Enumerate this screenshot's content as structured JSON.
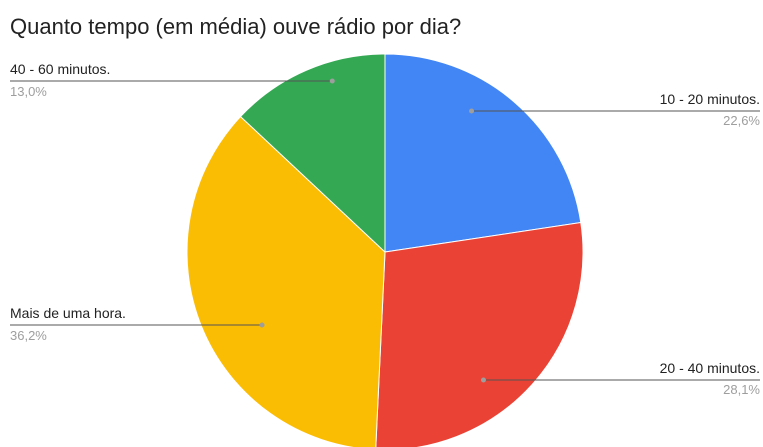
{
  "chart_data": {
    "type": "pie",
    "title": "Quanto tempo (em média) ouve rádio por dia?",
    "slices": [
      {
        "label": "10 - 20 minutos.",
        "value": 22.6,
        "pct_label": "22,6%",
        "color": "#4285f4"
      },
      {
        "label": "20 - 40 minutos.",
        "value": 28.1,
        "pct_label": "28,1%",
        "color": "#ea4335"
      },
      {
        "label": "Mais de uma hora.",
        "value": 36.2,
        "pct_label": "36,2%",
        "color": "#fbbc04"
      },
      {
        "label": "40 - 60 minutos.",
        "value": 13.0,
        "pct_label": "13,0%",
        "color": "#34a853"
      }
    ],
    "start_angle_deg": 0,
    "direction": "clockwise",
    "legend": "none"
  }
}
